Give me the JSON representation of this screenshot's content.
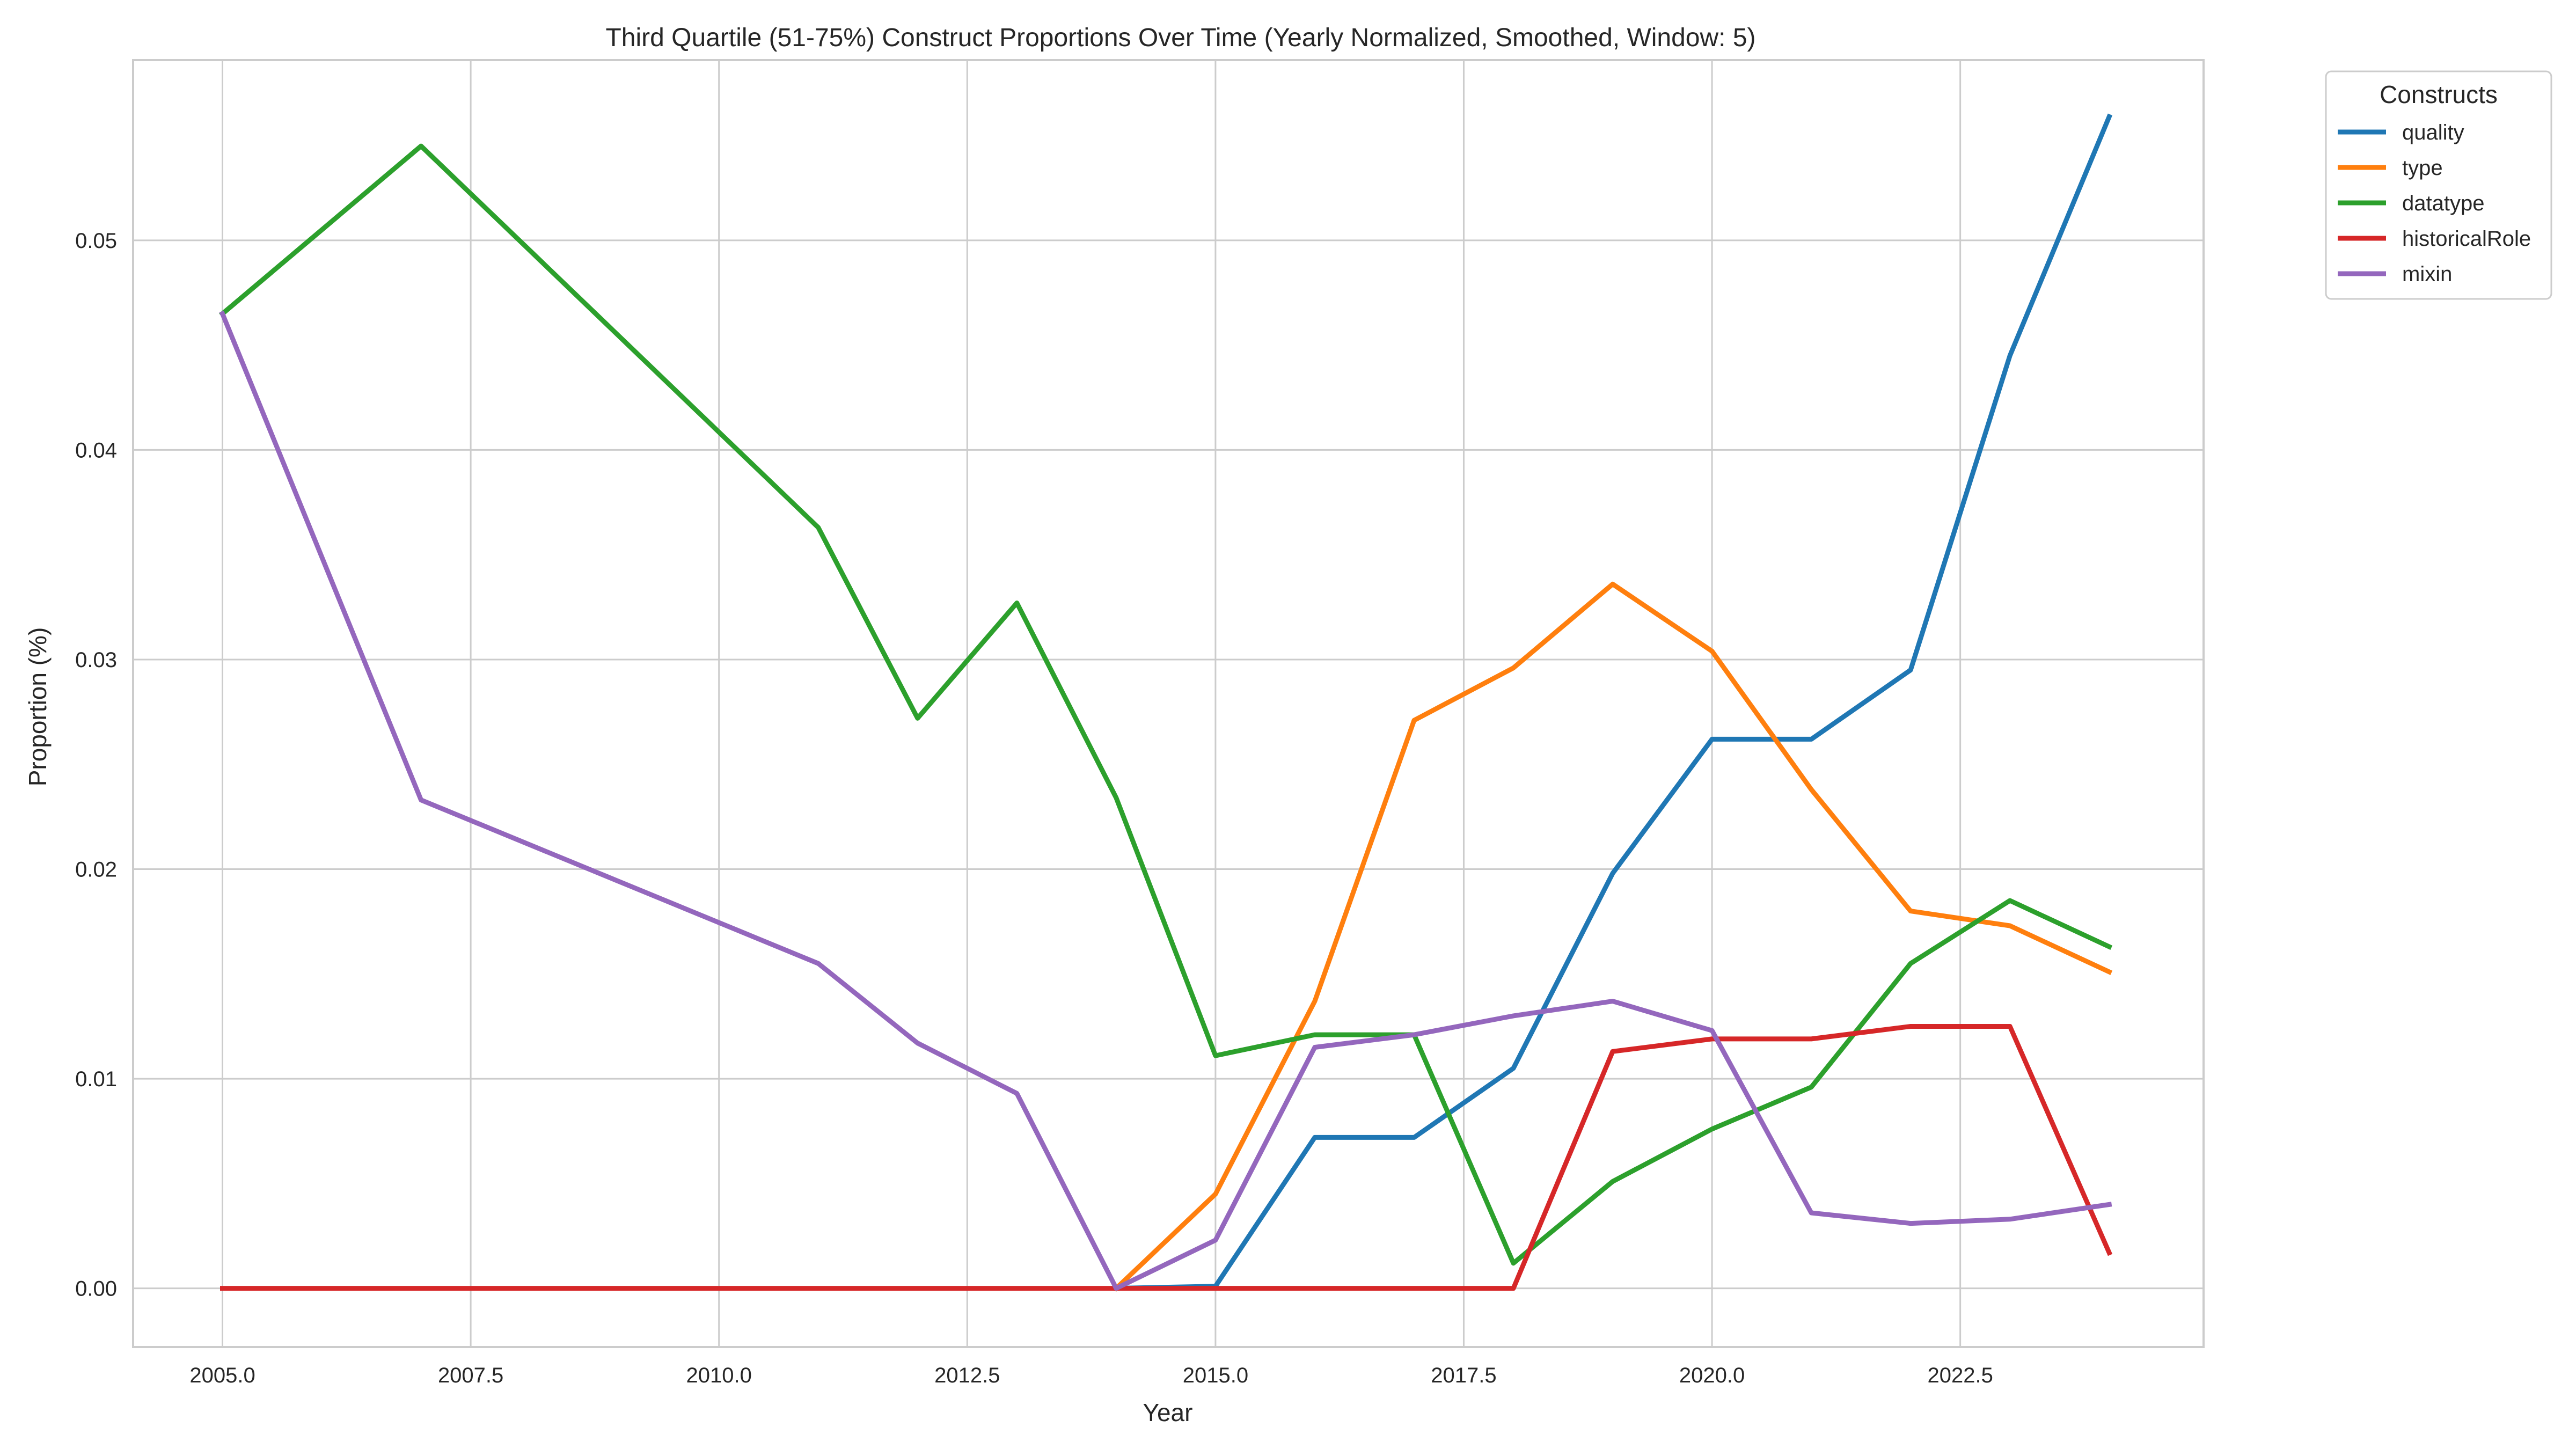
{
  "chart_data": {
    "type": "line",
    "title": "Third Quartile (51-75%) Construct Proportions Over Time (Yearly Normalized, Smoothed, Window: 5)",
    "xlabel": "Year",
    "ylabel": "Proportion (%)",
    "xlim": [
      2004.1,
      2024.95
    ],
    "ylim": [
      -0.0028,
      0.0586
    ],
    "xticks": [
      2005.0,
      2007.5,
      2010.0,
      2012.5,
      2015.0,
      2017.5,
      2020.0,
      2022.5
    ],
    "xtick_labels": [
      "2005.0",
      "2007.5",
      "2010.0",
      "2012.5",
      "2015.0",
      "2017.5",
      "2020.0",
      "2022.5"
    ],
    "yticks": [
      0.0,
      0.01,
      0.02,
      0.03,
      0.04,
      0.05
    ],
    "ytick_labels": [
      "0.00",
      "0.01",
      "0.02",
      "0.03",
      "0.04",
      "0.05"
    ],
    "grid": true,
    "legend": {
      "title": "Constructs",
      "placement": "outside-top-right"
    },
    "series": [
      {
        "name": "quality",
        "color": "#1f77b4",
        "x": [
          2014,
          2015,
          2016,
          2017,
          2018,
          2019,
          2020,
          2021,
          2022,
          2023,
          2024
        ],
        "y": [
          0.0,
          0.0001,
          0.0072,
          0.0072,
          0.0105,
          0.0198,
          0.0262,
          0.0262,
          0.0295,
          0.0445,
          0.0559
        ]
      },
      {
        "name": "type",
        "color": "#ff7f0e",
        "x": [
          2014,
          2015,
          2016,
          2017,
          2018,
          2019,
          2020,
          2021,
          2022,
          2023,
          2024
        ],
        "y": [
          0.0,
          0.0045,
          0.0137,
          0.0271,
          0.0296,
          0.0336,
          0.0304,
          0.0238,
          0.018,
          0.0173,
          0.0151
        ]
      },
      {
        "name": "datatype",
        "color": "#2ca02c",
        "x": [
          2005,
          2007,
          2011,
          2012,
          2013,
          2014,
          2015,
          2016,
          2017,
          2018,
          2019,
          2020,
          2021,
          2022,
          2023,
          2024
        ],
        "y": [
          0.0465,
          0.0545,
          0.0363,
          0.0272,
          0.0327,
          0.0234,
          0.0111,
          0.0121,
          0.0121,
          0.0012,
          0.0051,
          0.0076,
          0.0096,
          0.0155,
          0.0185,
          0.0163
        ]
      },
      {
        "name": "historicalRole",
        "color": "#d62728",
        "x": [
          2005,
          2007,
          2011,
          2012,
          2013,
          2014,
          2015,
          2016,
          2017,
          2018,
          2019,
          2020,
          2021,
          2022,
          2023,
          2024
        ],
        "y": [
          0.0,
          0.0,
          0.0,
          0.0,
          0.0,
          0.0,
          0.0,
          0.0,
          0.0,
          0.0,
          0.0113,
          0.0119,
          0.0119,
          0.0125,
          0.0125,
          0.0017
        ]
      },
      {
        "name": "mixin",
        "color": "#9467bd",
        "x": [
          2005,
          2007,
          2011,
          2012,
          2013,
          2014,
          2015,
          2016,
          2017,
          2018,
          2019,
          2020,
          2021,
          2022,
          2023,
          2024
        ],
        "y": [
          0.0465,
          0.0233,
          0.0155,
          0.0117,
          0.0093,
          0.0,
          0.0023,
          0.0115,
          0.0121,
          0.013,
          0.0137,
          0.0123,
          0.0036,
          0.0031,
          0.0033,
          0.004
        ]
      }
    ]
  }
}
